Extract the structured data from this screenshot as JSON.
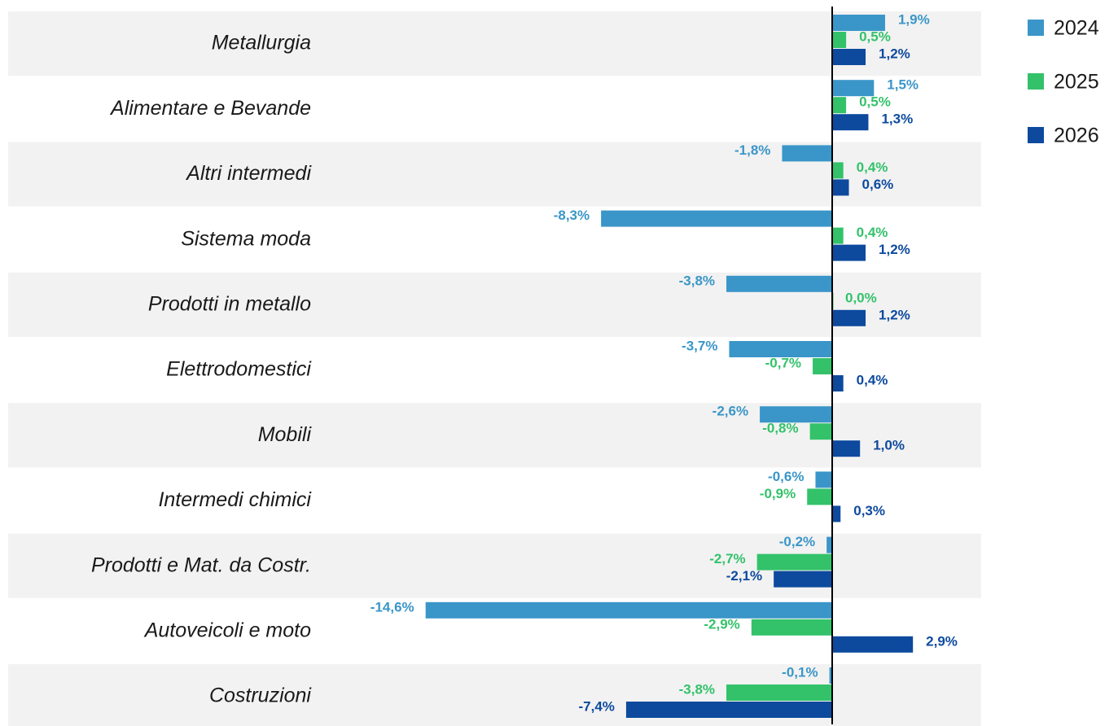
{
  "chart_data": {
    "type": "hbar",
    "categories": [
      "Metallurgia",
      "Alimentare e Bevande",
      "Altri intermedi",
      "Sistema moda",
      "Prodotti in metallo",
      "Elettrodomestici",
      "Mobili",
      "Intermedi chimici",
      "Prodotti e Mat. da Costr.",
      "Autoveicoli e moto",
      "Costruzioni"
    ],
    "series": [
      {
        "name": "2024",
        "color": "#3a96c8",
        "values": [
          1.9,
          1.5,
          -1.8,
          -8.3,
          -3.8,
          -3.7,
          -2.6,
          -0.6,
          -0.2,
          -14.6,
          -0.1
        ],
        "value_labels": [
          "1,9%",
          "1,5%",
          "-1,8%",
          "-8,3%",
          "-3,8%",
          "-3,7%",
          "-2,6%",
          "-0,6%",
          "-0,2%",
          "-14,6%",
          "-0,1%"
        ]
      },
      {
        "name": "2025",
        "color": "#33c26a",
        "values": [
          0.5,
          0.5,
          0.4,
          0.4,
          0.0,
          -0.7,
          -0.8,
          -0.9,
          -2.7,
          -2.9,
          -3.8
        ],
        "value_labels": [
          "0,5%",
          "0,5%",
          "0,4%",
          "0,4%",
          "0,0%",
          "-0,7%",
          "-0,8%",
          "-0,9%",
          "-2,7%",
          "-2,9%",
          "-3,8%"
        ]
      },
      {
        "name": "2026",
        "color": "#0d4a9e",
        "values": [
          1.2,
          1.3,
          0.6,
          1.2,
          1.2,
          0.4,
          1.0,
          0.3,
          -2.1,
          2.9,
          -7.4
        ],
        "value_labels": [
          "1,2%",
          "1,3%",
          "0,6%",
          "1,2%",
          "1,2%",
          "0,4%",
          "1,0%",
          "0,3%",
          "-2,1%",
          "2,9%",
          "-7,4%"
        ]
      }
    ]
  }
}
